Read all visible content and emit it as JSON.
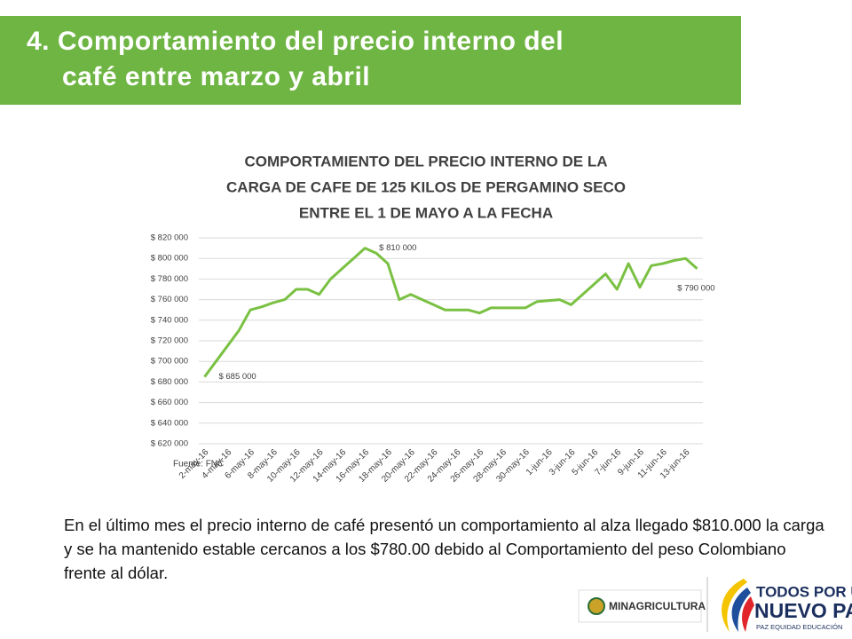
{
  "header": {
    "title": [
      "4. Comportamiento del precio interno del",
      "café entre marzo y abril"
    ]
  },
  "chart_data": {
    "type": "line",
    "title": [
      "COMPORTAMIENTO DEL PRECIO INTERNO DE LA",
      "CARGA DE CAFE DE 125 KILOS DE PERGAMINO SECO",
      "ENTRE EL 1 DE MAYO A LA FECHA"
    ],
    "categories": [
      "2-may-16",
      null,
      "4-may-16",
      null,
      "6-may-16",
      null,
      "8-may-16",
      null,
      "10-may-16",
      null,
      "12-may-16",
      null,
      "14-may-16",
      null,
      "16-may-16",
      null,
      "18-may-16",
      null,
      "20-may-16",
      null,
      "22-may-16",
      null,
      "24-may-16",
      null,
      "26-may-16",
      null,
      "28-may-16",
      null,
      "30-may-16",
      null,
      "1-jun-16",
      null,
      "3-jun-16",
      null,
      "5-jun-16",
      null,
      "7-jun-16",
      null,
      "9-jun-16",
      null,
      "11-jun-16",
      null,
      "13-jun-16",
      null
    ],
    "series": [
      {
        "name": null,
        "color": "#7ac143",
        "values": [
          685000,
          700000,
          715000,
          730000,
          750000,
          753000,
          757000,
          760000,
          770000,
          770000,
          765000,
          780000,
          790000,
          800000,
          810000,
          805000,
          795000,
          760000,
          765000,
          760000,
          755000,
          750000,
          750000,
          750000,
          747000,
          752000,
          752000,
          752000,
          752000,
          758000,
          759000,
          760000,
          755000,
          765000,
          775000,
          785000,
          770000,
          795000,
          772000,
          793000,
          795000,
          798000,
          800000,
          790000
        ],
        "value_labels": [
          "$ 685 000",
          null,
          null,
          null,
          null,
          null,
          null,
          null,
          null,
          null,
          null,
          null,
          null,
          null,
          "$ 810 000",
          null,
          null,
          null,
          null,
          null,
          null,
          null,
          null,
          null,
          null,
          null,
          null,
          null,
          null,
          null,
          null,
          null,
          null,
          null,
          null,
          null,
          null,
          null,
          null,
          null,
          null,
          null,
          null,
          "$ 790 000"
        ]
      }
    ],
    "ylim": [
      620000,
      820000
    ],
    "yticks": [
      {
        "value": 620000,
        "label": "$ 620 000"
      },
      {
        "value": 640000,
        "label": "$ 640 000"
      },
      {
        "value": 660000,
        "label": "$ 660 000"
      },
      {
        "value": 680000,
        "label": "$ 680 000"
      },
      {
        "value": 700000,
        "label": "$ 700 000"
      },
      {
        "value": 720000,
        "label": "$ 720 000"
      },
      {
        "value": 740000,
        "label": "$ 740 000"
      },
      {
        "value": 760000,
        "label": "$ 760 000"
      },
      {
        "value": 780000,
        "label": "$ 780 000"
      },
      {
        "value": 800000,
        "label": "$ 800 000"
      },
      {
        "value": 820000,
        "label": "$ 820 000"
      }
    ],
    "grid": true,
    "source": "Fuente: FNC"
  },
  "body": "En el último mes el precio interno de café presentó un comportamiento al alza llegado $810.000 la carga y se ha mantenido estable cercanos a los $780.00 debido al Comportamiento del peso Colombiano frente al dólar.",
  "logos": {
    "ministry": "MINAGRICULTURA",
    "slogan": [
      "TODOS POR UN",
      "NUEVO PAÍS"
    ],
    "motto": "PAZ  EQUIDAD  EDUCACIÓN"
  }
}
